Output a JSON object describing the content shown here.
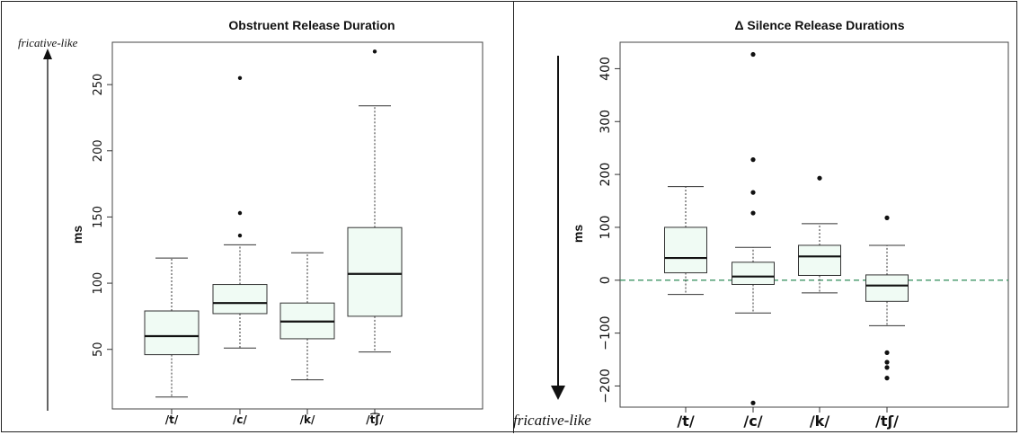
{
  "chart_data": [
    {
      "type": "box",
      "title": "Obstruent Release Duration",
      "xlabel": "",
      "ylabel": "ms",
      "ylim": [
        5,
        282
      ],
      "yticks": [
        50,
        100,
        150,
        200,
        250
      ],
      "grid": false,
      "arrow_label": "fricative-like",
      "arrow_direction": "up",
      "box_fill": "#f0fbf4",
      "categories": [
        "/t/",
        "/c/",
        "/k/",
        "/t͡ʃ/"
      ],
      "boxes": [
        {
          "whisker_low": 14,
          "q1": 46,
          "median": 60,
          "q3": 79,
          "whisker_high": 119,
          "outliers": []
        },
        {
          "whisker_low": 51,
          "q1": 77,
          "median": 85,
          "q3": 99,
          "whisker_high": 129,
          "outliers": [
            136,
            153,
            255
          ]
        },
        {
          "whisker_low": 27,
          "q1": 58,
          "median": 71,
          "q3": 85,
          "whisker_high": 123,
          "outliers": []
        },
        {
          "whisker_low": 48,
          "q1": 75,
          "median": 107,
          "q3": 142,
          "whisker_high": 234,
          "outliers": [
            275
          ]
        }
      ]
    },
    {
      "type": "box",
      "title": "Δ Silence Release Durations",
      "xlabel": "",
      "ylabel": "ms",
      "ylim": [
        -240,
        450
      ],
      "yticks": [
        -200,
        -100,
        0,
        100,
        200,
        300,
        400
      ],
      "grid": false,
      "reference_line": 0,
      "reference_color": "#2e8b57",
      "arrow_label": "fricative-like",
      "arrow_direction": "down",
      "box_fill": "#f0fbf4",
      "categories": [
        "/t/",
        "/c/",
        "/k/",
        "/tʃ/"
      ],
      "boxes": [
        {
          "whisker_low": -27,
          "q1": 14,
          "median": 42,
          "q3": 100,
          "whisker_high": 177,
          "outliers": []
        },
        {
          "whisker_low": -62,
          "q1": -8,
          "median": 7,
          "q3": 34,
          "whisker_high": 62,
          "outliers": [
            -232,
            127,
            166,
            228,
            427
          ]
        },
        {
          "whisker_low": -24,
          "q1": 9,
          "median": 45,
          "q3": 66,
          "whisker_high": 107,
          "outliers": [
            193
          ]
        },
        {
          "whisker_low": -86,
          "q1": -40,
          "median": -10,
          "q3": 10,
          "whisker_high": 66,
          "outliers": [
            -185,
            -165,
            -155,
            -137,
            118
          ]
        }
      ]
    }
  ]
}
